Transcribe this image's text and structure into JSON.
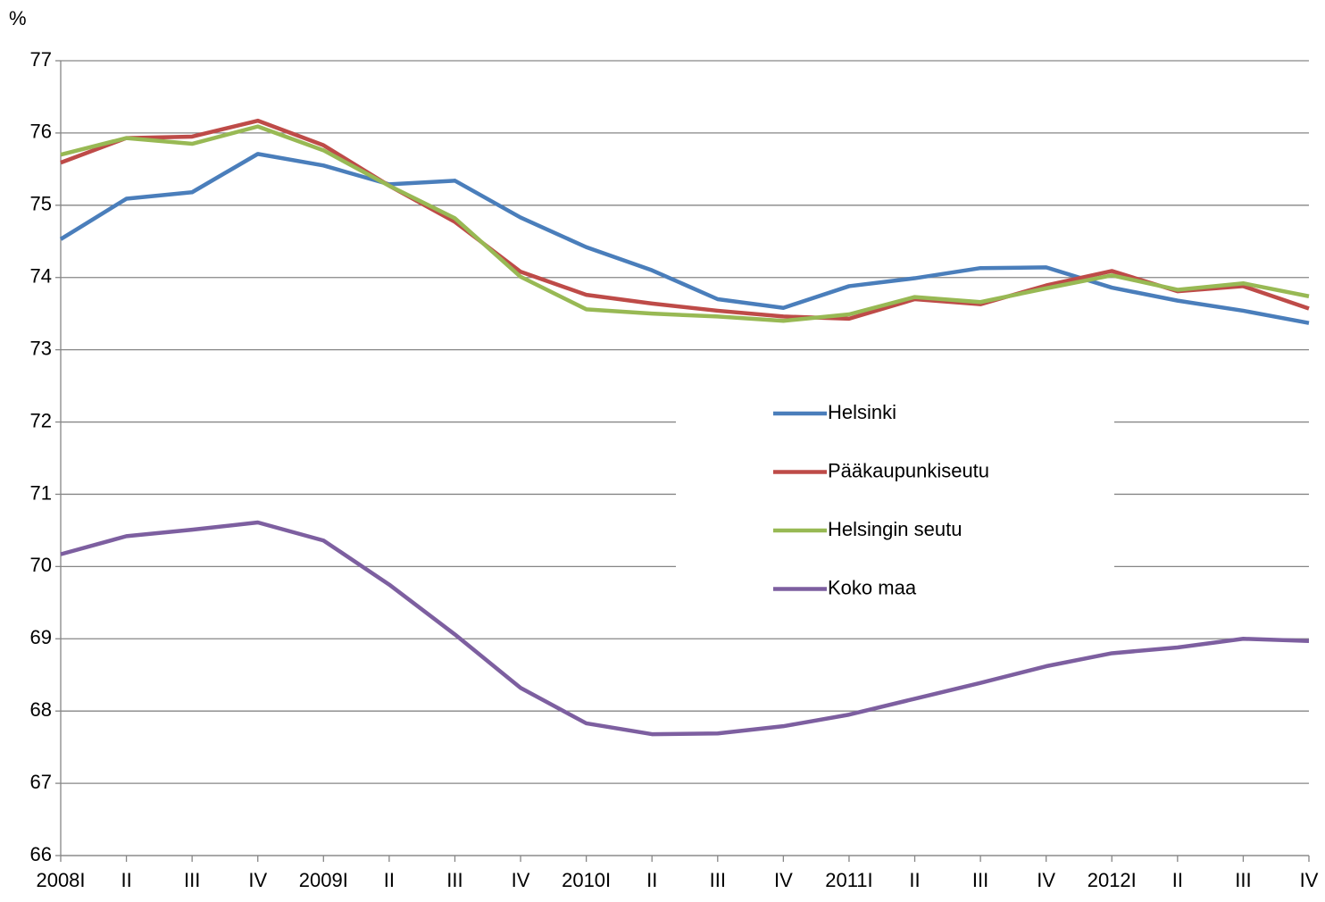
{
  "chart_data": {
    "type": "line",
    "y_label": "%",
    "categories": [
      "2008I",
      "II",
      "III",
      "IV",
      "2009I",
      "II",
      "III",
      "IV",
      "2010I",
      "II",
      "III",
      "IV",
      "2011I",
      "II",
      "III",
      "IV",
      "2012I",
      "II",
      "III",
      "IV"
    ],
    "series": [
      {
        "name": "Helsinki",
        "color": "#4a7ebb",
        "values": [
          74.53,
          75.09,
          75.18,
          75.71,
          75.55,
          75.29,
          75.34,
          74.83,
          74.42,
          74.1,
          73.7,
          73.58,
          73.88,
          73.99,
          74.13,
          74.14,
          73.86,
          73.68,
          73.54,
          73.37
        ]
      },
      {
        "name": "Pääkaupunkiseutu",
        "color": "#be4b48",
        "values": [
          75.59,
          75.93,
          75.95,
          76.17,
          75.83,
          75.27,
          74.77,
          74.08,
          73.76,
          73.64,
          73.54,
          73.46,
          73.43,
          73.7,
          73.63,
          73.89,
          74.09,
          73.81,
          73.88,
          73.57
        ]
      },
      {
        "name": "Helsingin seutu",
        "color": "#98b954",
        "values": [
          75.7,
          75.93,
          75.85,
          76.09,
          75.76,
          75.27,
          74.82,
          74.01,
          73.56,
          73.5,
          73.46,
          73.4,
          73.49,
          73.73,
          73.66,
          73.85,
          74.03,
          73.83,
          73.92,
          73.74
        ]
      },
      {
        "name": "Koko maa",
        "color": "#7d5fa0",
        "values": [
          70.17,
          70.42,
          70.51,
          70.61,
          70.36,
          69.75,
          69.06,
          68.32,
          67.83,
          67.68,
          67.69,
          67.79,
          67.95,
          68.17,
          68.39,
          68.62,
          68.8,
          68.88,
          69.0,
          68.97
        ]
      }
    ],
    "ylim": [
      66,
      77
    ],
    "yticks": [
      66,
      67,
      68,
      69,
      70,
      71,
      72,
      73,
      74,
      75,
      76,
      77
    ],
    "grid": true
  }
}
